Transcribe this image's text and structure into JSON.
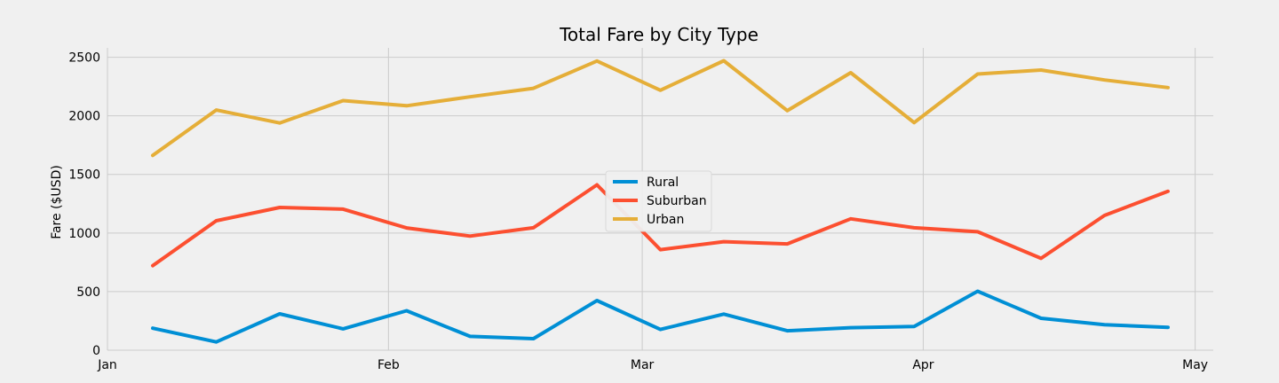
{
  "chart_data": {
    "type": "line",
    "title": "Total Fare by City Type",
    "xlabel": "",
    "ylabel": "Fare ($USD)",
    "x": [
      "2019-01-06",
      "2019-01-13",
      "2019-01-20",
      "2019-01-27",
      "2019-02-03",
      "2019-02-10",
      "2019-02-17",
      "2019-02-24",
      "2019-03-03",
      "2019-03-10",
      "2019-03-17",
      "2019-03-24",
      "2019-03-31",
      "2019-04-07",
      "2019-04-14",
      "2019-04-21",
      "2019-04-28"
    ],
    "xticks": [
      {
        "date": "2019-01-01",
        "label": "Jan"
      },
      {
        "date": "2019-02-01",
        "label": "Feb"
      },
      {
        "date": "2019-03-01",
        "label": "Mar"
      },
      {
        "date": "2019-04-01",
        "label": "Apr"
      },
      {
        "date": "2019-05-01",
        "label": "May"
      }
    ],
    "xlim": [
      "2019-01-01",
      "2019-05-03"
    ],
    "ylim": [
      0,
      2580
    ],
    "yticks": [
      0,
      500,
      1000,
      1500,
      2000,
      2500
    ],
    "grid": true,
    "legend_position": "center",
    "series": [
      {
        "name": "Rural",
        "color": "#008fd5",
        "values": [
          188,
          70,
          310,
          182,
          337,
          118,
          98,
          424,
          177,
          308,
          166,
          192,
          202,
          503,
          272,
          217,
          195
        ]
      },
      {
        "name": "Suburban",
        "color": "#fc4f30",
        "values": [
          722,
          1105,
          1218,
          1204,
          1043,
          974,
          1045,
          1411,
          858,
          926,
          907,
          1121,
          1045,
          1011,
          784,
          1150,
          1356
        ]
      },
      {
        "name": "Urban",
        "color": "#e5ae38",
        "values": [
          1662,
          2050,
          1939,
          2130,
          2086,
          2162,
          2235,
          2468,
          2218,
          2470,
          2044,
          2368,
          1942,
          2357,
          2391,
          2306,
          2241
        ]
      }
    ]
  }
}
